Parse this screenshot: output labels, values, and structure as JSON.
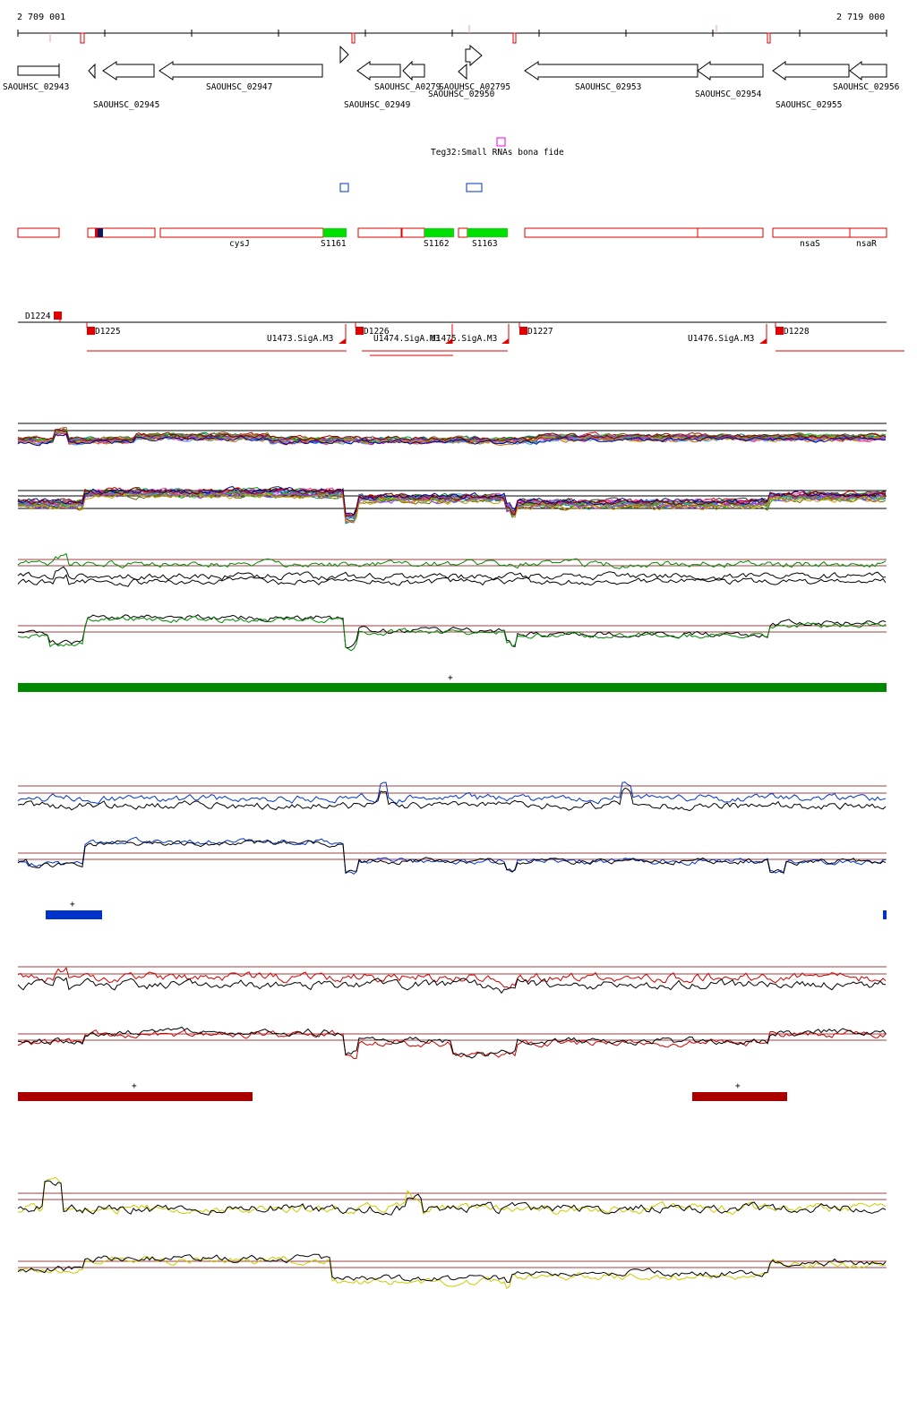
{
  "coords": {
    "start": "2 709 001",
    "end": "2 719 000"
  },
  "genes": [
    {
      "id": "g02943",
      "label": "SAOUHSC_02943"
    },
    {
      "id": "g02945",
      "label": "SAOUHSC_02945"
    },
    {
      "id": "g02947",
      "label": "SAOUHSC_02947"
    },
    {
      "id": "g02949",
      "label": "SAOUHSC_02949"
    },
    {
      "id": "gA0279",
      "label": "SAOUHSC_A0279"
    },
    {
      "id": "g02950",
      "label": "SAOUHSC_02950"
    },
    {
      "id": "gA02795",
      "label": "SAOUHSC_A02795"
    },
    {
      "id": "g02953",
      "label": "SAOUHSC_02953"
    },
    {
      "id": "g02954",
      "label": "SAOUHSC_02954"
    },
    {
      "id": "g02955",
      "label": "SAOUHSC_02955"
    },
    {
      "id": "g02956",
      "label": "SAOUHSC_02956"
    }
  ],
  "srna": {
    "label": "Teg32:Small RNAs bona fide"
  },
  "annotations": [
    {
      "id": "cysJ",
      "label": "cysJ"
    },
    {
      "id": "S1161",
      "label": "S1161"
    },
    {
      "id": "S1162",
      "label": "S1162"
    },
    {
      "id": "S1163",
      "label": "S1163"
    },
    {
      "id": "nsaS",
      "label": "nsaS"
    },
    {
      "id": "nsaR",
      "label": "nsaR"
    }
  ],
  "transcripts": [
    {
      "id": "D1224",
      "label": "D1224"
    },
    {
      "id": "D1225",
      "label": "D1225"
    },
    {
      "id": "D1226",
      "label": "D1226"
    },
    {
      "id": "D1227",
      "label": "D1227"
    },
    {
      "id": "D1228",
      "label": "D1228"
    },
    {
      "id": "U1473",
      "label": "U1473.SigA.M3"
    },
    {
      "id": "U1474",
      "label": "U1474.SigA.M3"
    },
    {
      "id": "U1475",
      "label": "U1475.SigA.M3"
    },
    {
      "id": "U1476",
      "label": "U1476.SigA.M3"
    }
  ],
  "plus_sign": "+",
  "colors": {
    "gene_outline": "#000000",
    "annotation_box": "#e00000",
    "srna_green": "#00e000",
    "green_track": "#008800",
    "blue_track": "#0033cc",
    "red_track": "#cc0000",
    "darkred_bar": "#aa0000",
    "yellow_track": "#cccc00",
    "magenta": "#ee00ee"
  }
}
